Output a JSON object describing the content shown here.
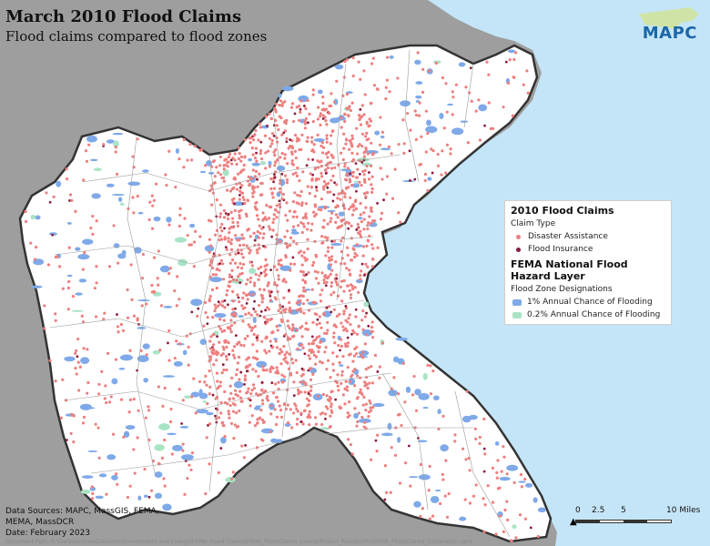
{
  "title": "March 2010 Flood Claims",
  "subtitle": "Flood claims compared to flood zones",
  "logo": {
    "text": "MAPC"
  },
  "colors": {
    "water": "#c4e5f7",
    "land_outside": "#9e9e9e",
    "land_region": "#ffffff",
    "disaster_assistance": "#ee7f7f",
    "flood_insurance": "#8b1a3b",
    "flood_1pct": "#7fa9e8",
    "flood_02pct": "#a9e3c5",
    "boundary": "#444444"
  },
  "legend": {
    "section1_title": "2010 Flood Claims",
    "claim_type_label": "Claim Type",
    "items1": [
      {
        "label": "Disaster Assistance",
        "color_key": "disaster_assistance"
      },
      {
        "label": "Flood Insurance",
        "color_key": "flood_insurance"
      }
    ],
    "section2_title": "FEMA National Flood Hazard Layer",
    "zone_label": "Flood Zone Designations",
    "items2": [
      {
        "label": "1% Annual Chance of Flooding",
        "color_key": "flood_1pct"
      },
      {
        "label": "0.2% Annual Chance of Flooding",
        "color_key": "flood_02pct"
      }
    ]
  },
  "sources": {
    "line1": "Data Sources: MAPC, MassGIS, FEMA,",
    "line2": "MEMA, MassDCR",
    "line3": "Date: February 2023"
  },
  "doc_path": "Document Path: K:\\DataServices\\Datasets\\Environment and Energy\\FEMA_Flood Claims\\FEMA_FloodClaims_Leiana\\Project_files\\ArcPro\\FEMA_FloodClaims_Exploration.aprx",
  "scale": {
    "labels": [
      "0",
      "2.5",
      "5",
      "10 Miles"
    ]
  }
}
